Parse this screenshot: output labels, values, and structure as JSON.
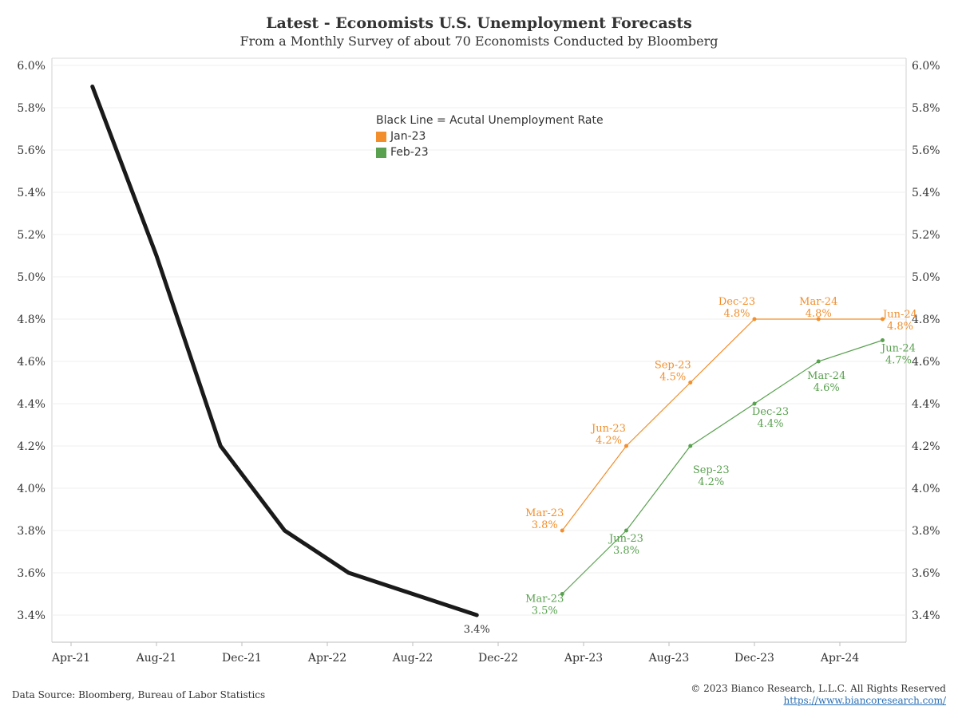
{
  "title": "Latest - Economists U.S. Unemployment Forecasts",
  "subtitle": "From a Monthly Survey of about 70 Economists Conducted by Bloomberg",
  "legend": {
    "heading": "Black Line = Acutal Unemployment Rate",
    "items": [
      {
        "label": "Jan-23",
        "color": "#f28e2b"
      },
      {
        "label": "Feb-23",
        "color": "#59a14f"
      }
    ]
  },
  "footer": {
    "source": "Data Source: Bloomberg, Bureau of Labor Statistics",
    "copyright": "© 2023 Bianco Research, L.L.C. All Rights Reserved",
    "url": "https://www.biancoresearch.com/"
  },
  "chart_data": {
    "type": "line",
    "x_ticks": [
      "Apr-21",
      "Aug-21",
      "Dec-21",
      "Apr-22",
      "Aug-22",
      "Dec-22",
      "Apr-23",
      "Aug-23",
      "Dec-23",
      "Apr-24"
    ],
    "y_ticks": [
      "3.4%",
      "3.6%",
      "3.8%",
      "4.0%",
      "4.2%",
      "4.4%",
      "4.6%",
      "4.8%",
      "5.0%",
      "5.2%",
      "5.4%",
      "5.6%",
      "5.8%",
      "6.0%"
    ],
    "ylim": [
      3.3,
      6.05
    ],
    "y_axes": "left and right",
    "grid": "horizontal",
    "actual": {
      "color": "#1a1a1a",
      "points": [
        {
          "x": "2021-05",
          "y": 5.9
        },
        {
          "x": "2021-08",
          "y": 5.1
        },
        {
          "x": "2021-11",
          "y": 4.2
        },
        {
          "x": "2022-02",
          "y": 3.8
        },
        {
          "x": "2022-05",
          "y": 3.6
        },
        {
          "x": "2022-08",
          "y": 3.5
        },
        {
          "x": "2022-11",
          "y": 3.4
        }
      ],
      "end_label": "3.4%"
    },
    "series": [
      {
        "name": "Jan-23",
        "color": "#f28e2b",
        "points": [
          {
            "x": "2023-03",
            "y": 3.8,
            "label": "Mar-23",
            "value_label": "3.8%"
          },
          {
            "x": "2023-06",
            "y": 4.2,
            "label": "Jun-23",
            "value_label": "4.2%"
          },
          {
            "x": "2023-09",
            "y": 4.5,
            "label": "Sep-23",
            "value_label": "4.5%"
          },
          {
            "x": "2023-12",
            "y": 4.8,
            "label": "Dec-23",
            "value_label": "4.8%"
          },
          {
            "x": "2024-03",
            "y": 4.8,
            "label": "Mar-24",
            "value_label": "4.8%"
          },
          {
            "x": "2024-06",
            "y": 4.8,
            "label": "Jun-24",
            "value_label": "4.8%"
          }
        ]
      },
      {
        "name": "Feb-23",
        "color": "#59a14f",
        "points": [
          {
            "x": "2023-03",
            "y": 3.5,
            "label": "Mar-23",
            "value_label": "3.5%"
          },
          {
            "x": "2023-06",
            "y": 3.8,
            "label": "Jun-23",
            "value_label": "3.8%"
          },
          {
            "x": "2023-09",
            "y": 4.2,
            "label": "Sep-23",
            "value_label": "4.2%"
          },
          {
            "x": "2023-12",
            "y": 4.4,
            "label": "Dec-23",
            "value_label": "4.4%"
          },
          {
            "x": "2024-03",
            "y": 4.6,
            "label": "Mar-24",
            "value_label": "4.6%"
          },
          {
            "x": "2024-06",
            "y": 4.7,
            "label": "Jun-24",
            "value_label": "4.7%"
          }
        ]
      }
    ]
  }
}
